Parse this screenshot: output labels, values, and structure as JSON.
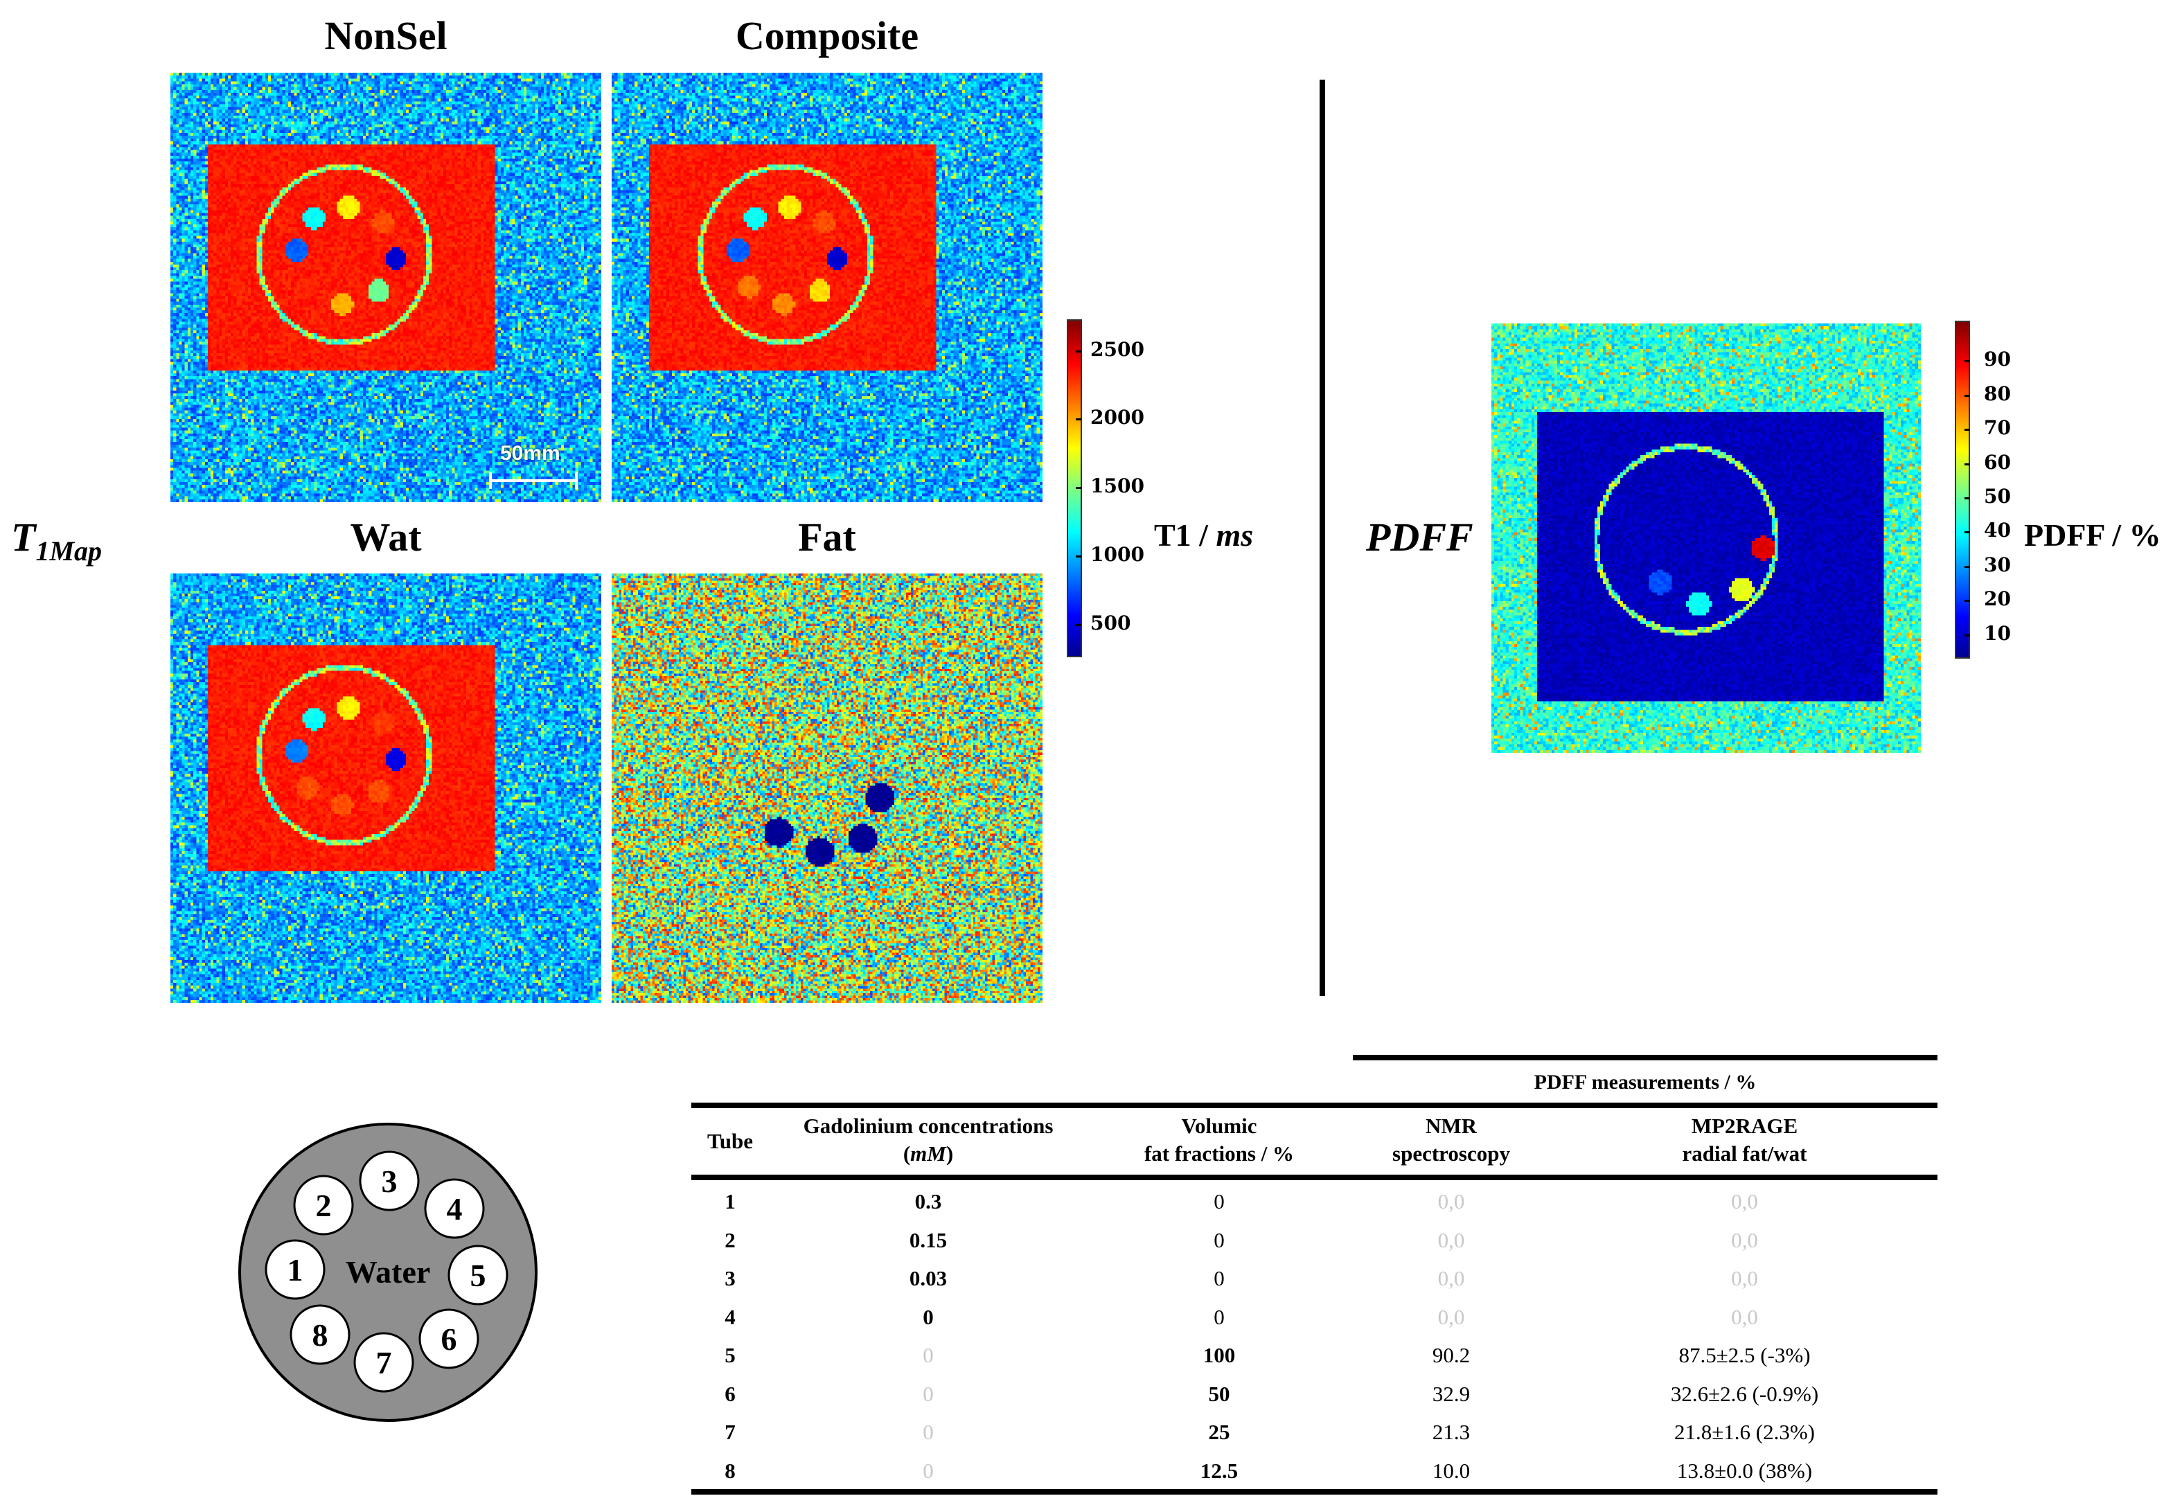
{
  "panels": {
    "nonsel": {
      "title": "NonSel",
      "scale_bar": "50mm"
    },
    "composite": {
      "title": "Composite"
    },
    "wat": {
      "title": "Wat"
    },
    "fat": {
      "title": "Fat"
    },
    "pdff": {
      "title": "PDFF"
    }
  },
  "labels": {
    "t1map_main": "T",
    "t1map_sub": "1Map",
    "pdff": "PDFF"
  },
  "t1_colorbar": {
    "label_main": "T1 / ",
    "label_unit": "ms",
    "range": [
      200,
      2650
    ],
    "ticks": [
      "2500",
      "2000",
      "1500",
      "1000",
      "500"
    ]
  },
  "pdff_colorbar": {
    "label": "PDFF / %",
    "range": [
      1,
      99
    ],
    "ticks": [
      "90",
      "80",
      "70",
      "60",
      "50",
      "40",
      "30",
      "20",
      "10"
    ]
  },
  "diagram": {
    "center_label": "Water",
    "tubes": [
      "1",
      "2",
      "3",
      "4",
      "5",
      "6",
      "7",
      "8"
    ],
    "colors": {
      "phantom": "#8f8f8f",
      "tube": "#ffffff"
    }
  },
  "table": {
    "group_header": "PDFF measurements / %",
    "headers": [
      {
        "line1": "Tube",
        "line2": ""
      },
      {
        "line1": "Gadolinium concentrations",
        "line2": "(",
        "line2_italic": "mM",
        "line2_end": ")"
      },
      {
        "line1": "Volumic",
        "line2": "fat fractions / %"
      },
      {
        "line1": "NMR",
        "line2": "spectroscopy"
      },
      {
        "line1": "MP2RAGE",
        "line2": "radial fat/wat"
      }
    ],
    "rows": [
      {
        "tube": "1",
        "gd": "0.3",
        "vol": "0",
        "nmr": "0,0",
        "mp2rage": "0,0"
      },
      {
        "tube": "2",
        "gd": "0.15",
        "vol": "0",
        "nmr": "0,0",
        "mp2rage": "0,0"
      },
      {
        "tube": "3",
        "gd": "0.03",
        "vol": "0",
        "nmr": "0,0",
        "mp2rage": "0,0"
      },
      {
        "tube": "4",
        "gd": "0",
        "vol": "0",
        "nmr": "0,0",
        "mp2rage": "0,0"
      },
      {
        "tube": "5",
        "gd": "0",
        "vol": "100",
        "nmr": "90.2",
        "mp2rage": "87.5±2.5 (-3%)"
      },
      {
        "tube": "6",
        "gd": "0",
        "vol": "50",
        "nmr": "32.9",
        "mp2rage": "32.6±2.6 (-0.9%)"
      },
      {
        "tube": "7",
        "gd": "0",
        "vol": "25",
        "nmr": "21.3",
        "mp2rage": "21.8±1.6 (2.3%)"
      },
      {
        "tube": "8",
        "gd": "0",
        "vol": "12.5",
        "nmr": "10.0",
        "mp2rage": "13.8±0.0 (38%)"
      }
    ]
  }
}
